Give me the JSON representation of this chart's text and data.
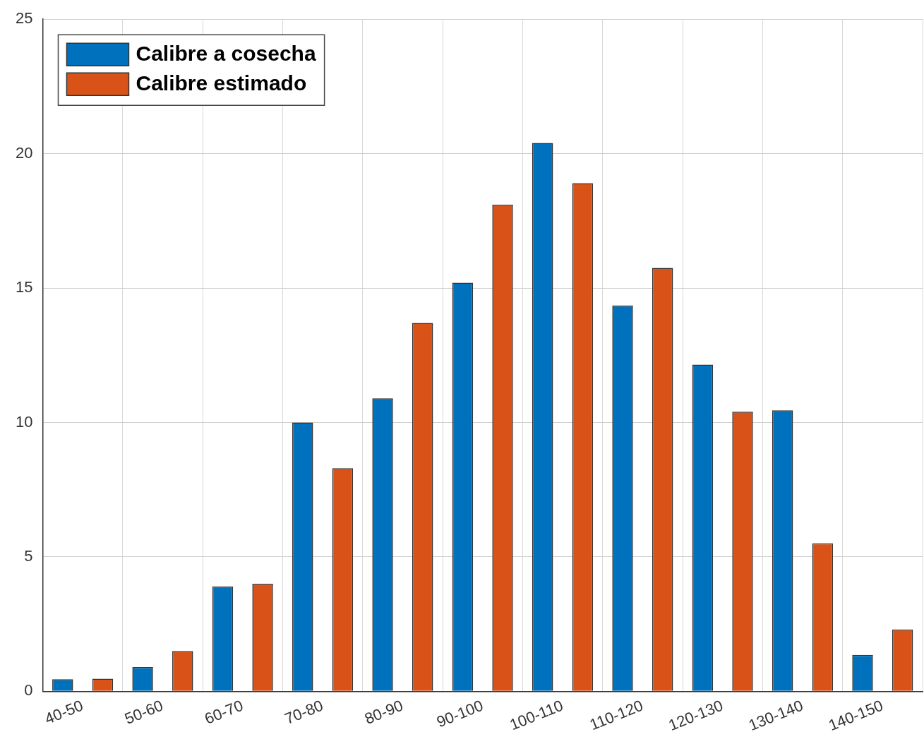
{
  "chart_data": {
    "type": "bar",
    "categories": [
      "40-50",
      "50-60",
      "60-70",
      "70-80",
      "80-90",
      "90-100",
      "100-110",
      "110-120",
      "120-130",
      "130-140",
      "140-150"
    ],
    "series": [
      {
        "name": "Calibre a cosecha",
        "color": "#0072bd",
        "values": [
          0.45,
          0.9,
          3.9,
          10.0,
          10.9,
          15.2,
          20.4,
          14.35,
          12.15,
          10.45,
          1.35
        ]
      },
      {
        "name": "Calibre estimado",
        "color": "#d95319",
        "values": [
          0.47,
          1.5,
          4.0,
          8.3,
          13.7,
          18.1,
          18.9,
          15.75,
          10.4,
          5.5,
          2.3
        ]
      }
    ],
    "ylim": [
      0,
      25
    ],
    "yticks": [
      0,
      5,
      10,
      15,
      20,
      25
    ],
    "grid": true,
    "legend": "top left"
  }
}
